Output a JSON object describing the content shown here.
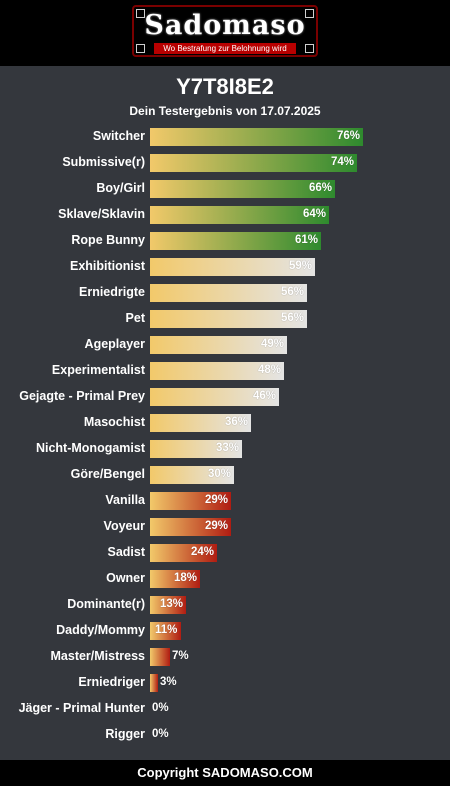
{
  "header": {
    "logo_text": "Sadomaso",
    "logo_tagline": "Wo Bestrafung zur Belohnung wird",
    "colors": {
      "brand_red": "#b80000",
      "border_red": "#7a0000"
    }
  },
  "result": {
    "title": "Y7T8I8E2",
    "subtitle": "Dein Testergebnis von 17.07.2025"
  },
  "chart_data": {
    "type": "bar",
    "orientation": "horizontal",
    "xlim": [
      0,
      100
    ],
    "unit": "%",
    "grid": false,
    "categories": [
      "Switcher",
      "Submissive(r)",
      "Boy/Girl",
      "Sklave/Sklavin",
      "Rope Bunny",
      "Exhibitionist",
      "Erniedrigte",
      "Pet",
      "Ageplayer",
      "Experimentalist",
      "Gejagte - Primal Prey",
      "Masochist",
      "Nicht-Monogamist",
      "Göre/Bengel",
      "Vanilla",
      "Voyeur",
      "Sadist",
      "Owner",
      "Dominante(r)",
      "Daddy/Mommy",
      "Master/Mistress",
      "Erniedriger",
      "Jäger - Primal Hunter",
      "Rigger"
    ],
    "values": [
      76,
      74,
      66,
      64,
      61,
      59,
      56,
      56,
      49,
      48,
      46,
      36,
      33,
      30,
      29,
      29,
      24,
      18,
      13,
      11,
      7,
      3,
      0,
      0
    ],
    "value_labels": [
      "76%",
      "74%",
      "66%",
      "64%",
      "61%",
      "59%",
      "56%",
      "56%",
      "49%",
      "48%",
      "46%",
      "36%",
      "33%",
      "30%",
      "29%",
      "29%",
      "24%",
      "18%",
      "13%",
      "11%",
      "7%",
      "3%",
      "0%",
      "0%"
    ],
    "colors": {
      "start": "#f2c96a",
      "high_end": "#2e8a2e",
      "mid_end": "#e4e4e4",
      "low_end": "#b01c12"
    }
  },
  "footer": {
    "text": "Copyright SADOMASO.COM"
  }
}
